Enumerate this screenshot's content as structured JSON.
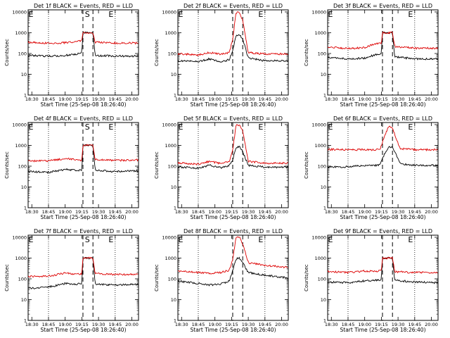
{
  "style": {
    "events_color": "#000000",
    "lld_color": "#dd0000",
    "background": "#ffffff"
  },
  "shared": {
    "xlabel": "Start Time (25-Sep-08 18:26:40)",
    "ylabel": "Counts/sec",
    "x_ticks": [
      "18:30",
      "18:45",
      "19:00",
      "19:15",
      "19:30",
      "19:45",
      "20:00"
    ],
    "y_ticks": [
      "1",
      "10",
      "100",
      "1000",
      "10000"
    ],
    "markers": {
      "start": "E",
      "saa": "S",
      "end": "E"
    }
  },
  "chart_data": [
    {
      "type": "line",
      "title": "Det 1f BLACK = Events, RED = LLD",
      "dotted_x": [
        "18:45",
        "19:45"
      ],
      "dashed_x": [
        "19:16",
        "19:25"
      ],
      "saa_marker": "S",
      "ylim": [
        1,
        10000
      ],
      "series": [
        {
          "name": "Events",
          "x": [
            "18:30",
            "18:45",
            "19:00",
            "19:10",
            "19:15",
            "19:16",
            "19:25",
            "19:27",
            "19:45",
            "20:00",
            "20:06"
          ],
          "values": [
            80,
            75,
            80,
            95,
            110,
            1000,
            1000,
            80,
            75,
            75,
            75
          ]
        },
        {
          "name": "LLD",
          "x": [
            "18:30",
            "18:45",
            "19:00",
            "19:10",
            "19:15",
            "19:16",
            "19:25",
            "19:27",
            "19:45",
            "20:00",
            "20:06"
          ],
          "values": [
            350,
            310,
            330,
            380,
            420,
            1000,
            1000,
            350,
            320,
            320,
            320
          ]
        }
      ]
    },
    {
      "type": "line",
      "title": "Det 2f BLACK = Events, RED = LLD",
      "dotted_x": [
        "18:45",
        "19:45"
      ],
      "dashed_x": [
        "19:16",
        "19:25"
      ],
      "saa_marker": "",
      "ylim": [
        1,
        10000
      ],
      "series": [
        {
          "name": "Events",
          "x": [
            "18:30",
            "18:45",
            "18:55",
            "19:05",
            "19:13",
            "19:16",
            "19:19",
            "19:22",
            "19:25",
            "19:30",
            "19:45",
            "20:06"
          ],
          "values": [
            45,
            40,
            55,
            40,
            50,
            150,
            750,
            800,
            500,
            60,
            45,
            45
          ]
        },
        {
          "name": "LLD",
          "x": [
            "18:30",
            "18:45",
            "18:55",
            "19:05",
            "19:13",
            "19:16",
            "19:19",
            "19:22",
            "19:25",
            "19:30",
            "19:45",
            "20:06"
          ],
          "values": [
            95,
            85,
            110,
            95,
            110,
            500,
            9000,
            10000,
            4000,
            110,
            95,
            95
          ]
        }
      ]
    },
    {
      "type": "line",
      "title": "Det 3f BLACK = Events, RED = LLD",
      "dotted_x": [
        "18:45",
        "19:45"
      ],
      "dashed_x": [
        "19:16",
        "19:25"
      ],
      "saa_marker": "",
      "ylim": [
        1,
        10000
      ],
      "series": [
        {
          "name": "Events",
          "x": [
            "18:30",
            "18:45",
            "19:00",
            "19:10",
            "19:15",
            "19:16",
            "19:25",
            "19:27",
            "19:45",
            "20:06"
          ],
          "values": [
            65,
            55,
            60,
            90,
            100,
            1000,
            1000,
            70,
            55,
            55
          ]
        },
        {
          "name": "LLD",
          "x": [
            "18:30",
            "18:45",
            "19:00",
            "19:10",
            "19:15",
            "19:16",
            "19:25",
            "19:27",
            "19:45",
            "20:06"
          ],
          "values": [
            200,
            175,
            190,
            300,
            320,
            1000,
            1000,
            220,
            180,
            180
          ]
        }
      ]
    },
    {
      "type": "line",
      "title": "Det 4f BLACK = Events, RED = LLD",
      "dotted_x": [
        "18:45",
        "19:45"
      ],
      "dashed_x": [
        "19:16",
        "19:25"
      ],
      "saa_marker": "S",
      "ylim": [
        1,
        10000
      ],
      "series": [
        {
          "name": "Events",
          "x": [
            "18:30",
            "18:45",
            "19:00",
            "19:10",
            "19:15",
            "19:16",
            "19:25",
            "19:27",
            "19:45",
            "20:06"
          ],
          "values": [
            55,
            50,
            70,
            65,
            60,
            1000,
            1000,
            65,
            55,
            60
          ]
        },
        {
          "name": "LLD",
          "x": [
            "18:30",
            "18:45",
            "19:00",
            "19:10",
            "19:15",
            "19:16",
            "19:25",
            "19:27",
            "19:45",
            "20:06"
          ],
          "values": [
            180,
            180,
            230,
            210,
            190,
            1000,
            1000,
            210,
            190,
            200
          ]
        }
      ]
    },
    {
      "type": "line",
      "title": "Det 5f BLACK = Events, RED = LLD",
      "dotted_x": [
        "18:45",
        "19:45"
      ],
      "dashed_x": [
        "19:16",
        "19:25"
      ],
      "saa_marker": "",
      "ylim": [
        1,
        10000
      ],
      "series": [
        {
          "name": "Events",
          "x": [
            "18:30",
            "18:45",
            "18:55",
            "19:05",
            "19:13",
            "19:16",
            "19:19",
            "19:22",
            "19:25",
            "19:30",
            "19:45",
            "20:06"
          ],
          "values": [
            90,
            80,
            110,
            85,
            110,
            200,
            800,
            900,
            500,
            110,
            90,
            90
          ]
        },
        {
          "name": "LLD",
          "x": [
            "18:30",
            "18:45",
            "18:55",
            "19:05",
            "19:13",
            "19:16",
            "19:19",
            "19:22",
            "19:25",
            "19:30",
            "19:45",
            "20:06"
          ],
          "values": [
            140,
            125,
            170,
            135,
            170,
            600,
            9000,
            10000,
            5000,
            170,
            140,
            140
          ]
        }
      ]
    },
    {
      "type": "line",
      "title": "Det 6f BLACK = Events, RED = LLD",
      "dotted_x": [
        "18:45",
        "19:45"
      ],
      "dashed_x": [
        "19:16",
        "19:25"
      ],
      "saa_marker": "",
      "ylim": [
        1,
        10000
      ],
      "series": [
        {
          "name": "Events",
          "x": [
            "18:30",
            "18:45",
            "19:00",
            "19:10",
            "19:14",
            "19:18",
            "19:22",
            "19:25",
            "19:28",
            "19:32",
            "19:45",
            "20:06"
          ],
          "values": [
            90,
            95,
            105,
            110,
            120,
            400,
            900,
            800,
            400,
            130,
            110,
            110
          ]
        },
        {
          "name": "LLD",
          "x": [
            "18:30",
            "18:45",
            "19:00",
            "19:10",
            "19:14",
            "19:18",
            "19:22",
            "19:25",
            "19:28",
            "19:32",
            "19:45",
            "20:06"
          ],
          "values": [
            640,
            620,
            620,
            620,
            700,
            3000,
            9000,
            7000,
            2500,
            700,
            620,
            620
          ]
        }
      ]
    },
    {
      "type": "line",
      "title": "Det 7f BLACK = Events, RED = LLD",
      "dotted_x": [
        "18:45",
        "19:45"
      ],
      "dashed_x": [
        "19:16",
        "19:25"
      ],
      "saa_marker": "S",
      "ylim": [
        1,
        10000
      ],
      "series": [
        {
          "name": "Events",
          "x": [
            "18:30",
            "18:45",
            "19:00",
            "19:10",
            "19:15",
            "19:16",
            "19:25",
            "19:27",
            "19:45",
            "20:06"
          ],
          "values": [
            35,
            40,
            60,
            55,
            60,
            1000,
            1000,
            55,
            50,
            55
          ]
        },
        {
          "name": "LLD",
          "x": [
            "18:30",
            "18:45",
            "19:00",
            "19:10",
            "19:15",
            "19:16",
            "19:25",
            "19:27",
            "19:45",
            "20:06"
          ],
          "values": [
            130,
            135,
            190,
            170,
            180,
            1000,
            1000,
            180,
            160,
            170
          ]
        }
      ]
    },
    {
      "type": "line",
      "title": "Det 8f BLACK = Events, RED = LLD",
      "dotted_x": [
        "18:45",
        "19:45"
      ],
      "dashed_x": [
        "19:16",
        "19:25"
      ],
      "saa_marker": "",
      "ylim": [
        1,
        10000
      ],
      "series": [
        {
          "name": "Events",
          "x": [
            "18:30",
            "18:45",
            "18:55",
            "19:05",
            "19:13",
            "19:16",
            "19:19",
            "19:22",
            "19:25",
            "19:30",
            "19:45",
            "20:06"
          ],
          "values": [
            75,
            60,
            50,
            55,
            80,
            250,
            900,
            1000,
            600,
            200,
            150,
            110
          ]
        },
        {
          "name": "LLD",
          "x": [
            "18:30",
            "18:45",
            "18:55",
            "19:05",
            "19:13",
            "19:16",
            "19:19",
            "19:22",
            "19:25",
            "19:30",
            "19:45",
            "20:06"
          ],
          "values": [
            230,
            200,
            180,
            200,
            260,
            900,
            9500,
            10000,
            5000,
            600,
            450,
            350
          ]
        }
      ]
    },
    {
      "type": "line",
      "title": "Det 9f BLACK = Events, RED = LLD",
      "dotted_x": [
        "18:45",
        "19:45"
      ],
      "dashed_x": [
        "19:16",
        "19:25"
      ],
      "saa_marker": "",
      "ylim": [
        1,
        10000
      ],
      "series": [
        {
          "name": "Events",
          "x": [
            "18:30",
            "18:45",
            "19:00",
            "19:10",
            "19:15",
            "19:16",
            "19:25",
            "19:27",
            "19:45",
            "20:06"
          ],
          "values": [
            70,
            65,
            80,
            85,
            90,
            1000,
            1000,
            85,
            70,
            65
          ]
        },
        {
          "name": "LLD",
          "x": [
            "18:30",
            "18:45",
            "19:00",
            "19:10",
            "19:15",
            "19:16",
            "19:25",
            "19:27",
            "19:45",
            "20:06"
          ],
          "values": [
            220,
            200,
            240,
            230,
            260,
            1000,
            1000,
            220,
            200,
            200
          ]
        }
      ]
    }
  ]
}
